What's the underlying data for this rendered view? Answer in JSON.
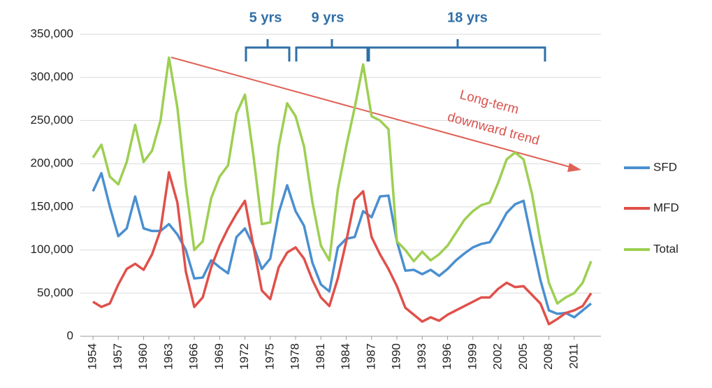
{
  "chart_data": {
    "type": "line",
    "x": [
      1954,
      1955,
      1956,
      1957,
      1958,
      1959,
      1960,
      1961,
      1962,
      1963,
      1964,
      1965,
      1966,
      1967,
      1968,
      1969,
      1970,
      1971,
      1972,
      1973,
      1974,
      1975,
      1976,
      1977,
      1978,
      1979,
      1980,
      1981,
      1982,
      1983,
      1984,
      1985,
      1986,
      1987,
      1988,
      1989,
      1990,
      1991,
      1992,
      1993,
      1994,
      1995,
      1996,
      1997,
      1998,
      1999,
      2000,
      2001,
      2002,
      2003,
      2004,
      2005,
      2006,
      2007,
      2008,
      2009,
      2010,
      2011,
      2012,
      2013
    ],
    "series": [
      {
        "name": "SFD",
        "color": "#4a8fd0",
        "values": [
          168000,
          189000,
          150000,
          116000,
          125000,
          162000,
          125000,
          122000,
          122000,
          130000,
          118000,
          100000,
          67000,
          68000,
          88000,
          80000,
          73000,
          115000,
          125000,
          105000,
          78000,
          90000,
          143000,
          175000,
          145000,
          128000,
          85000,
          60000,
          52000,
          103000,
          113000,
          115000,
          145000,
          138000,
          162000,
          163000,
          110000,
          76000,
          77000,
          72000,
          77000,
          70000,
          78000,
          88000,
          96000,
          103000,
          107000,
          109000,
          125000,
          143000,
          153000,
          157000,
          110000,
          65000,
          30000,
          26000,
          27000,
          22000,
          30000,
          38000
        ]
      },
      {
        "name": "MFD",
        "color": "#e0504a",
        "values": [
          40000,
          34000,
          38000,
          60000,
          78000,
          84000,
          77000,
          95000,
          123000,
          190000,
          155000,
          75000,
          34000,
          45000,
          80000,
          105000,
          125000,
          142000,
          157000,
          105000,
          53000,
          43000,
          80000,
          97000,
          103000,
          90000,
          65000,
          45000,
          35000,
          67000,
          110000,
          158000,
          168000,
          115000,
          95000,
          78000,
          58000,
          33000,
          25000,
          17000,
          22000,
          18000,
          25000,
          30000,
          35000,
          40000,
          45000,
          45000,
          55000,
          62000,
          57000,
          58000,
          48000,
          38000,
          14000,
          20000,
          27000,
          30000,
          35000,
          50000
        ]
      },
      {
        "name": "Total",
        "color": "#9dcf52",
        "values": [
          207000,
          222000,
          185000,
          176000,
          202000,
          245000,
          202000,
          215000,
          250000,
          323000,
          265000,
          175000,
          100000,
          110000,
          160000,
          185000,
          198000,
          258000,
          280000,
          210000,
          130000,
          132000,
          220000,
          270000,
          255000,
          220000,
          155000,
          105000,
          88000,
          170000,
          220000,
          265000,
          315000,
          255000,
          250000,
          240000,
          110000,
          100000,
          87000,
          98000,
          88000,
          95000,
          105000,
          120000,
          135000,
          145000,
          152000,
          155000,
          178000,
          205000,
          213000,
          205000,
          165000,
          110000,
          62000,
          38000,
          45000,
          50000,
          62000,
          87000
        ]
      }
    ],
    "xlim": [
      1953.5,
      2013.5
    ],
    "xticks": [
      1954,
      1957,
      1960,
      1963,
      1966,
      1969,
      1972,
      1975,
      1978,
      1981,
      1984,
      1987,
      1990,
      1993,
      1996,
      1999,
      2002,
      2005,
      2008,
      2011
    ],
    "ylim": [
      0,
      350000
    ],
    "yticks": [
      0,
      {
        "value": 50000,
        "label": "50,000"
      },
      {
        "value": 100000,
        "label": "100,000"
      },
      {
        "value": 150000,
        "label": "150,000"
      },
      {
        "value": 200000,
        "label": "200,000"
      },
      {
        "value": 250000,
        "label": "250,000"
      },
      {
        "value": 300000,
        "label": "300,000"
      },
      {
        "value": 350000,
        "label": "350,000"
      }
    ],
    "grid": true,
    "legend": "right",
    "annotations": [
      "5 yrs",
      "9 yrs",
      "18 yrs",
      "Long-term",
      "downward trend"
    ]
  }
}
